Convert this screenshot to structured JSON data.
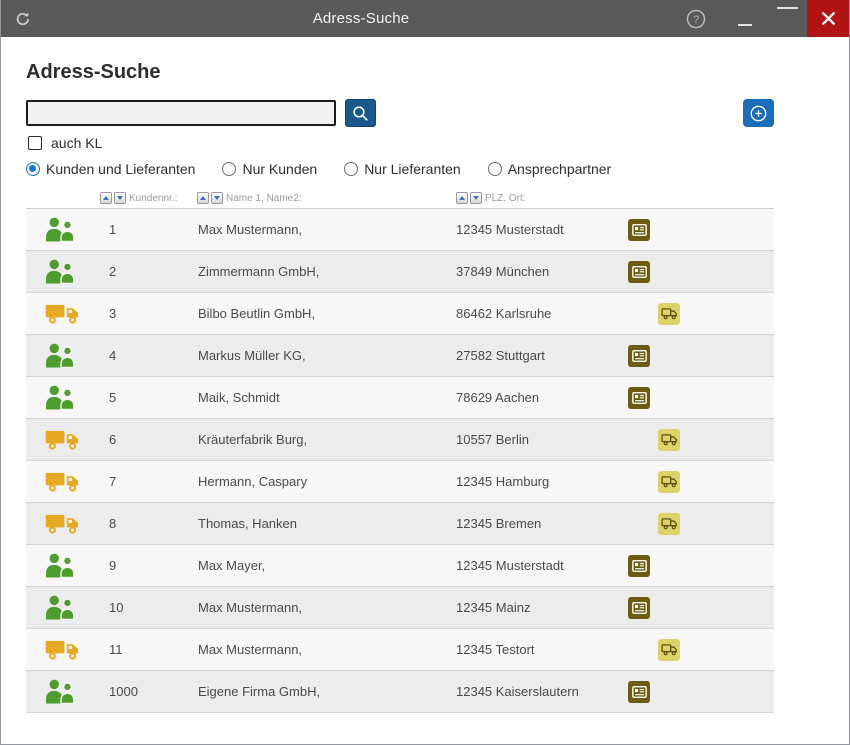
{
  "window": {
    "title": "Adress-Suche"
  },
  "header": {
    "title": "Adress-Suche"
  },
  "search": {
    "value": "",
    "button_name": "search"
  },
  "filters": {
    "checkbox_label": "auch KL",
    "checkbox_checked": false,
    "radios": [
      {
        "label": "Kunden und Lieferanten",
        "selected": true
      },
      {
        "label": "Nur Kunden",
        "selected": false
      },
      {
        "label": "Nur Lieferanten",
        "selected": false
      },
      {
        "label": "Ansprechpartner",
        "selected": false
      }
    ]
  },
  "table": {
    "columns": [
      {
        "label": "Kundennr.:"
      },
      {
        "label": "Name 1, Name2:"
      },
      {
        "label": "PLZ, Ort:"
      }
    ],
    "rows": [
      {
        "type": "customer",
        "number": "1",
        "name": "Max Mustermann,",
        "city": "12345 Musterstadt"
      },
      {
        "type": "customer",
        "number": "2",
        "name": "Zimmermann GmbH,",
        "city": "37849 München"
      },
      {
        "type": "supplier",
        "number": "3",
        "name": "Bilbo Beutlin GmbH,",
        "city": "86462 Karlsruhe"
      },
      {
        "type": "customer",
        "number": "4",
        "name": "Markus Müller KG,",
        "city": "27582 Stuttgart"
      },
      {
        "type": "customer",
        "number": "5",
        "name": "Maik, Schmidt",
        "city": "78629 Aachen"
      },
      {
        "type": "supplier",
        "number": "6",
        "name": "Kräuterfabrik Burg,",
        "city": "10557 Berlin"
      },
      {
        "type": "supplier",
        "number": "7",
        "name": "Hermann, Caspary",
        "city": "12345 Hamburg"
      },
      {
        "type": "supplier",
        "number": "8",
        "name": "Thomas, Hanken",
        "city": "12345 Bremen"
      },
      {
        "type": "customer",
        "number": "9",
        "name": "Max Mayer,",
        "city": "12345 Musterstadt"
      },
      {
        "type": "customer",
        "number": "10",
        "name": "Max Mustermann,",
        "city": "12345 Mainz"
      },
      {
        "type": "supplier",
        "number": "11",
        "name": "Max Mustermann,",
        "city": "12345 Testort"
      },
      {
        "type": "customer",
        "number": "1000",
        "name": "Eigene Firma GmbH,",
        "city": "12345 Kaiserslautern"
      }
    ]
  },
  "icons": {
    "customer_row": "customers-people-icon",
    "supplier_row": "supplier-truck-icon",
    "customer_action": "contact-card-icon",
    "supplier_action": "delivery-truck-icon"
  },
  "colors": {
    "titlebar": "#595959",
    "close_red": "#b11414",
    "search_blue": "#19598e",
    "add_blue": "#1b6cba",
    "radio_blue": "#1774d8",
    "customer_green": "#4e9b2e",
    "supplier_amber": "#e9a824",
    "card_button_olive": "#6b5c11",
    "truck_button_khaki": "#ddd369",
    "row_odd": "#f7f7f7",
    "row_even": "#ececec"
  }
}
